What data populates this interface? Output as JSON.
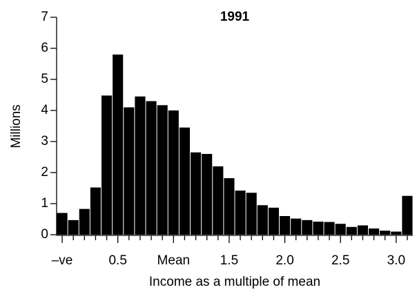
{
  "chart_data": {
    "type": "histogram",
    "title": "1991",
    "x_label": "Income as a multiple of mean",
    "y_label": "Millions",
    "bins": [
      -0.05,
      0.05,
      0.15,
      0.25,
      0.35,
      0.45,
      0.55,
      0.65,
      0.75,
      0.85,
      0.95,
      1.05,
      1.15,
      1.25,
      1.35,
      1.45,
      1.55,
      1.65,
      1.75,
      1.85,
      1.95,
      2.05,
      2.15,
      2.25,
      2.35,
      2.45,
      2.55,
      2.65,
      2.75,
      2.85,
      2.95,
      3.05,
      3.15
    ],
    "values": [
      0.7,
      0.47,
      0.83,
      1.52,
      4.48,
      5.8,
      4.1,
      4.45,
      4.3,
      4.17,
      4.0,
      3.45,
      2.65,
      2.6,
      2.2,
      1.82,
      1.42,
      1.35,
      0.95,
      0.87,
      0.6,
      0.52,
      0.47,
      0.42,
      0.41,
      0.35,
      0.25,
      0.3,
      0.2,
      0.13,
      0.1,
      1.25
    ],
    "color": "#000000",
    "xlim": [
      -0.05,
      3.15
    ],
    "xticks": [
      {
        "value": 0,
        "label": "–ve"
      },
      0.5,
      {
        "value": 1,
        "label": "Mean"
      },
      1.5,
      {
        "value": 2,
        "label": "2.0"
      },
      2.5,
      {
        "value": 3,
        "label": "3.0"
      }
    ],
    "xminorticks": [
      0.1,
      0.2,
      0.3,
      0.4,
      0.6,
      0.7,
      0.8,
      0.9,
      1.1,
      1.2,
      1.3,
      1.4,
      1.6,
      1.7,
      1.8,
      1.9,
      2.1,
      2.2,
      2.3,
      2.4,
      2.6,
      2.7,
      2.8,
      2.9,
      3.1
    ],
    "ylim": [
      0,
      7
    ],
    "yticks": [
      0,
      1,
      2,
      3,
      4,
      5,
      6,
      7
    ]
  }
}
